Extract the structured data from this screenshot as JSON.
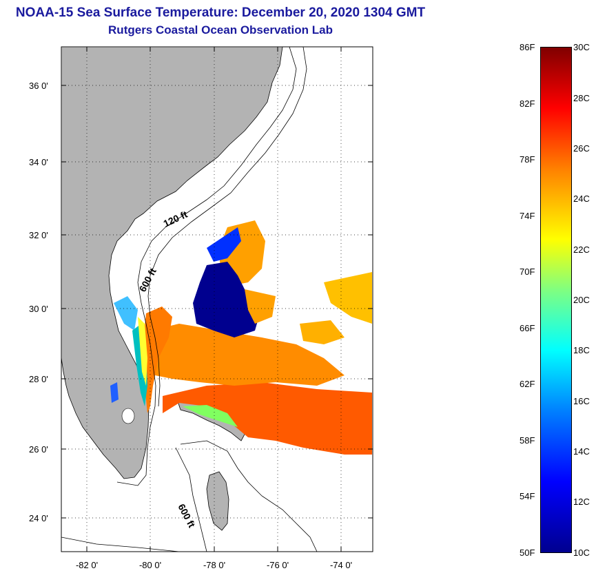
{
  "title": {
    "line1": "NOAA-15 Sea Surface Temperature:  December 20, 2020 1304 GMT",
    "line2": "Rutgers Coastal Ocean Observation Lab"
  },
  "map": {
    "lat_labels": [
      "36 0'",
      "34 0'",
      "32 0'",
      "30 0'",
      "28 0'",
      "26 0'",
      "24 0'"
    ],
    "lon_labels": [
      "-82 0'",
      "-80 0'",
      "-78 0'",
      "-76 0'",
      "-74 0'"
    ],
    "contour_labels": [
      "120 ft",
      "600 ft",
      "600 ft"
    ],
    "land_color": "#b3b3b3",
    "no_data_color": "#ffffff"
  },
  "colorbar": {
    "fahrenheit_labels": [
      "86F",
      "82F",
      "78F",
      "74F",
      "70F",
      "66F",
      "62F",
      "58F",
      "54F",
      "50F"
    ],
    "celsius_labels": [
      "30C",
      "28C",
      "26C",
      "24C",
      "22C",
      "20C",
      "18C",
      "16C",
      "14C",
      "12C",
      "10C"
    ],
    "range_c": [
      10,
      30
    ],
    "range_f": [
      50,
      86
    ],
    "colormap": "jet"
  }
}
